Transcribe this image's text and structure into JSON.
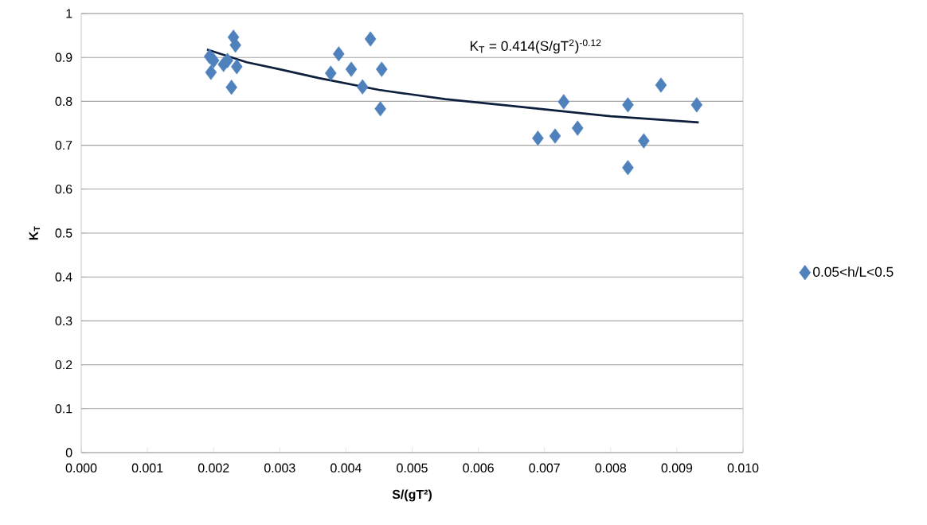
{
  "chart_data": {
    "type": "scatter",
    "xlabel": "S/(gT²)",
    "ylabel": "K$_{T}$",
    "annotations": [
      "K$_{T}$ = 0.414(S/gT$^{2}$)$^{-0.12}$"
    ],
    "series": [
      {
        "name": "0.05<h/L<0.5",
        "color": "#4f81bd",
        "marker": "diamond",
        "x": [
          0.00194,
          0.00196,
          0.002,
          0.00215,
          0.00221,
          0.0023,
          0.00233,
          0.00235,
          0.00227,
          0.00377,
          0.00389,
          0.00408,
          0.00425,
          0.00437,
          0.00454,
          0.00452,
          0.0069,
          0.00716,
          0.00729,
          0.0075,
          0.00826,
          0.00826,
          0.0085,
          0.00876,
          0.0093
        ],
        "values": [
          0.902,
          0.866,
          0.893,
          0.884,
          0.893,
          0.946,
          0.928,
          0.879,
          0.832,
          0.864,
          0.908,
          0.873,
          0.833,
          0.942,
          0.873,
          0.783,
          0.716,
          0.721,
          0.799,
          0.739,
          0.792,
          0.649,
          0.71,
          0.837,
          0.792
        ]
      },
      {
        "type": "line",
        "color": "#0d1f3c",
        "marker": "none",
        "line_style": "solid",
        "x": [
          0.0019,
          0.0025,
          0.003,
          0.00359,
          0.0045,
          0.0055,
          0.00647,
          0.008,
          0.00933
        ],
        "values": [
          0.918,
          0.889,
          0.873,
          0.853,
          0.826,
          0.805,
          0.79,
          0.766,
          0.752
        ]
      }
    ],
    "xlim": [
      0,
      0.01
    ],
    "xticks": [
      {
        "value": 0,
        "label": "0.000"
      },
      {
        "value": 0.001,
        "label": "0.001"
      },
      {
        "value": 0.002,
        "label": "0.002"
      },
      {
        "value": 0.003,
        "label": "0.003"
      },
      {
        "value": 0.004,
        "label": "0.004"
      },
      {
        "value": 0.005,
        "label": "0.005"
      },
      {
        "value": 0.006,
        "label": "0.006"
      },
      {
        "value": 0.007,
        "label": "0.007"
      },
      {
        "value": 0.008,
        "label": "0.008"
      },
      {
        "value": 0.009,
        "label": "0.009"
      },
      {
        "value": 0.01,
        "label": "0.010"
      }
    ],
    "ylim": [
      0,
      1
    ],
    "yticks": [
      0,
      0.1,
      0.2,
      0.3,
      0.4,
      0.5,
      0.6,
      0.7,
      0.8,
      0.9,
      1
    ],
    "grid": "y",
    "legend": "right"
  }
}
